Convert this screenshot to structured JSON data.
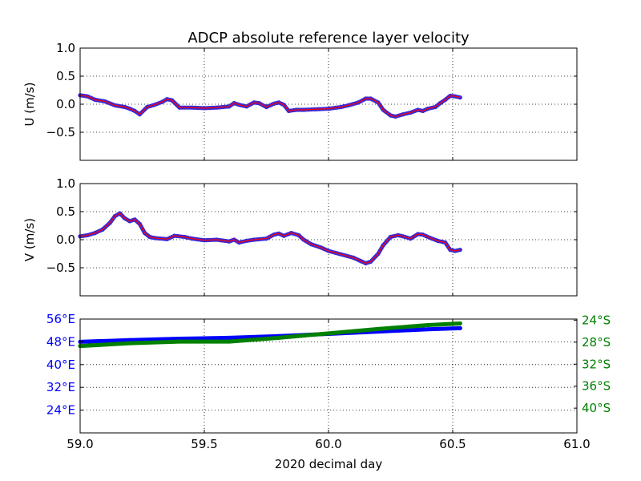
{
  "figure": {
    "title": "ADCP absolute reference layer velocity",
    "xlabel": "2020 decimal day"
  },
  "chart_data": [
    {
      "id": "u",
      "type": "line",
      "ylabel": "U (m/s)",
      "xlim": [
        59.0,
        61.0
      ],
      "ylim": [
        -1.0,
        1.0
      ],
      "yticks": [
        -0.5,
        0.0,
        0.5,
        1.0
      ],
      "ytick_labels": [
        "−0.5",
        "0.0",
        "0.5",
        "1.0"
      ],
      "grid": true,
      "series": [
        {
          "line_color": "#ff0000",
          "marker_color": "#3a2ad6",
          "x": [
            59.0,
            59.03,
            59.06,
            59.1,
            59.14,
            59.18,
            59.2,
            59.22,
            59.24,
            59.27,
            59.3,
            59.33,
            59.35,
            59.37,
            59.4,
            59.45,
            59.5,
            59.55,
            59.6,
            59.62,
            59.64,
            59.67,
            59.7,
            59.72,
            59.75,
            59.78,
            59.8,
            59.82,
            59.84,
            59.87,
            59.9,
            60.0,
            60.05,
            60.08,
            60.12,
            60.15,
            60.17,
            60.2,
            60.22,
            60.25,
            60.27,
            60.3,
            60.33,
            60.36,
            60.38,
            60.4,
            60.43,
            60.45,
            60.47,
            60.49,
            60.51,
            60.53
          ],
          "y": [
            0.16,
            0.14,
            0.08,
            0.05,
            -0.02,
            -0.05,
            -0.08,
            -0.12,
            -0.18,
            -0.05,
            -0.01,
            0.04,
            0.09,
            0.07,
            -0.06,
            -0.06,
            -0.07,
            -0.06,
            -0.04,
            0.02,
            -0.01,
            -0.04,
            0.03,
            0.02,
            -0.05,
            0.01,
            0.03,
            -0.01,
            -0.12,
            -0.1,
            -0.1,
            -0.08,
            -0.05,
            -0.02,
            0.03,
            0.1,
            0.1,
            0.03,
            -0.1,
            -0.2,
            -0.22,
            -0.18,
            -0.15,
            -0.1,
            -0.12,
            -0.08,
            -0.05,
            0.02,
            0.08,
            0.15,
            0.14,
            0.12
          ]
        }
      ]
    },
    {
      "id": "v",
      "type": "line",
      "ylabel": "V (m/s)",
      "xlim": [
        59.0,
        61.0
      ],
      "ylim": [
        -1.0,
        1.0
      ],
      "yticks": [
        -0.5,
        0.0,
        0.5,
        1.0
      ],
      "ytick_labels": [
        "−0.5",
        "0.0",
        "0.5",
        "1.0"
      ],
      "grid": true,
      "series": [
        {
          "line_color": "#ff0000",
          "marker_color": "#3a2ad6",
          "x": [
            59.0,
            59.03,
            59.06,
            59.09,
            59.12,
            59.14,
            59.16,
            59.18,
            59.2,
            59.22,
            59.24,
            59.26,
            59.28,
            59.3,
            59.35,
            59.38,
            59.42,
            59.45,
            59.5,
            59.55,
            59.6,
            59.62,
            59.64,
            59.67,
            59.7,
            59.75,
            59.78,
            59.8,
            59.82,
            59.85,
            59.88,
            59.9,
            59.93,
            59.97,
            60.0,
            60.05,
            60.1,
            60.13,
            60.15,
            60.17,
            60.2,
            60.22,
            60.25,
            60.28,
            60.3,
            60.33,
            60.36,
            60.38,
            60.41,
            60.44,
            60.47,
            60.49,
            60.51,
            60.53
          ],
          "y": [
            0.06,
            0.08,
            0.12,
            0.18,
            0.3,
            0.42,
            0.47,
            0.38,
            0.33,
            0.36,
            0.28,
            0.12,
            0.05,
            0.03,
            0.01,
            0.07,
            0.05,
            0.02,
            -0.01,
            0.0,
            -0.03,
            0.0,
            -0.05,
            -0.02,
            0.0,
            0.02,
            0.09,
            0.11,
            0.07,
            0.12,
            0.08,
            0.0,
            -0.08,
            -0.14,
            -0.2,
            -0.26,
            -0.32,
            -0.38,
            -0.42,
            -0.39,
            -0.25,
            -0.1,
            0.05,
            0.08,
            0.06,
            0.02,
            0.1,
            0.09,
            0.03,
            -0.02,
            -0.05,
            -0.18,
            -0.2,
            -0.18
          ]
        }
      ]
    },
    {
      "id": "position",
      "type": "line",
      "xlim": [
        59.0,
        61.0
      ],
      "xticks": [
        59.0,
        59.5,
        60.0,
        60.5,
        61.0
      ],
      "xtick_labels": [
        "59.0",
        "59.5",
        "60.0",
        "60.5",
        "61.0"
      ],
      "grid": true,
      "y_left": {
        "color": "#0000ff",
        "ylim": [
          16,
          56
        ],
        "ticks": [
          24,
          32,
          40,
          48,
          56
        ],
        "tick_labels": [
          "24°E",
          "32°E",
          "40°E",
          "48°E",
          "56°E"
        ]
      },
      "y_right": {
        "color": "#008000",
        "ylim": [
          -44.5,
          -23.8
        ],
        "ticks": [
          -24,
          -28,
          -32,
          -36,
          -40
        ],
        "tick_labels": [
          "24°S",
          "28°S",
          "32°S",
          "36°S",
          "40°S"
        ]
      },
      "series": [
        {
          "axis": "left",
          "color": "#0000ff",
          "x": [
            59.0,
            59.2,
            59.4,
            59.6,
            59.8,
            60.0,
            60.2,
            60.4,
            60.53
          ],
          "y": [
            48.0,
            48.6,
            49.1,
            49.4,
            50.0,
            50.8,
            51.6,
            52.4,
            52.8
          ]
        },
        {
          "axis": "right",
          "color": "#008000",
          "x": [
            59.0,
            59.2,
            59.4,
            59.6,
            59.8,
            60.0,
            60.2,
            60.4,
            60.53
          ],
          "y": [
            -28.7,
            -28.2,
            -27.9,
            -27.9,
            -27.2,
            -26.4,
            -25.6,
            -24.9,
            -24.6
          ]
        }
      ]
    }
  ]
}
